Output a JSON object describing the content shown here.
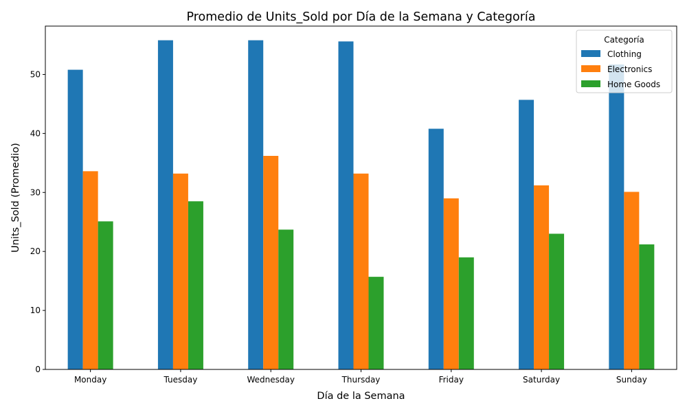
{
  "chart_data": {
    "type": "bar",
    "title": "Promedio de Units_Sold por Día de la Semana y Categoría",
    "xlabel": "Día de la Semana",
    "ylabel": "Units_Sold (Promedio)",
    "categories": [
      "Monday",
      "Tuesday",
      "Wednesday",
      "Thursday",
      "Friday",
      "Saturday",
      "Sunday"
    ],
    "series": [
      {
        "name": "Clothing",
        "color": "#1f77b4",
        "values": [
          50.8,
          55.8,
          55.8,
          55.6,
          40.8,
          45.7,
          51.7
        ]
      },
      {
        "name": "Electronics",
        "color": "#ff7f0e",
        "values": [
          33.6,
          33.2,
          36.2,
          33.2,
          29.0,
          31.2,
          30.1
        ]
      },
      {
        "name": "Home Goods",
        "color": "#2ca02c",
        "values": [
          25.1,
          28.5,
          23.7,
          15.7,
          19.0,
          23.0,
          21.2
        ]
      }
    ],
    "ylim": [
      0,
      58.2
    ],
    "yticks": [
      0,
      10,
      20,
      30,
      40,
      50
    ],
    "grid": false,
    "legend": {
      "title": "Categoría",
      "placement": "top-right"
    }
  }
}
